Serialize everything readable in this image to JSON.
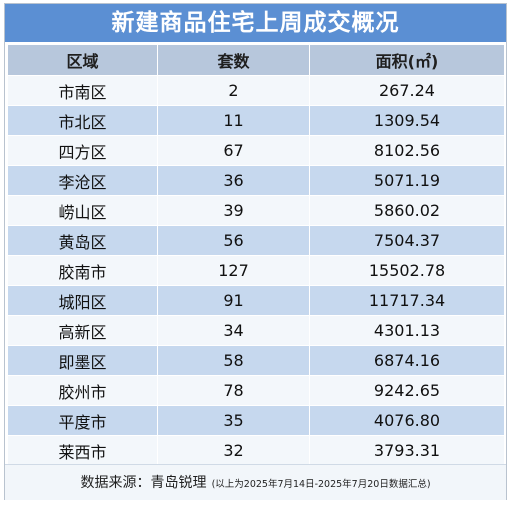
{
  "title": "新建商品住宅上周成交概况",
  "headers": [
    "区域",
    "套数",
    "面积(㎡)"
  ],
  "rows": [
    {
      "region": "市南区",
      "units": "2",
      "area": "267.24"
    },
    {
      "region": "市北区",
      "units": "11",
      "area": "1309.54"
    },
    {
      "region": "四方区",
      "units": "67",
      "area": "8102.56"
    },
    {
      "region": "李沧区",
      "units": "36",
      "area": "5071.19"
    },
    {
      "region": "崂山区",
      "units": "39",
      "area": "5860.02"
    },
    {
      "region": "黄岛区",
      "units": "56",
      "area": "7504.37"
    },
    {
      "region": "胶南市",
      "units": "127",
      "area": "15502.78"
    },
    {
      "region": "城阳区",
      "units": "91",
      "area": "11717.34"
    },
    {
      "region": "高新区",
      "units": "34",
      "area": "4301.13"
    },
    {
      "region": "即墨区",
      "units": "58",
      "area": "6874.16"
    },
    {
      "region": "胶州市",
      "units": "78",
      "area": "9242.65"
    },
    {
      "region": "平度市",
      "units": "35",
      "area": "4076.80"
    },
    {
      "region": "莱西市",
      "units": "32",
      "area": "3793.31"
    }
  ],
  "footer": {
    "source": "数据来源：青岛锐理",
    "note": "(以上为2025年7月14日-2025年7月20日数据汇总)"
  }
}
